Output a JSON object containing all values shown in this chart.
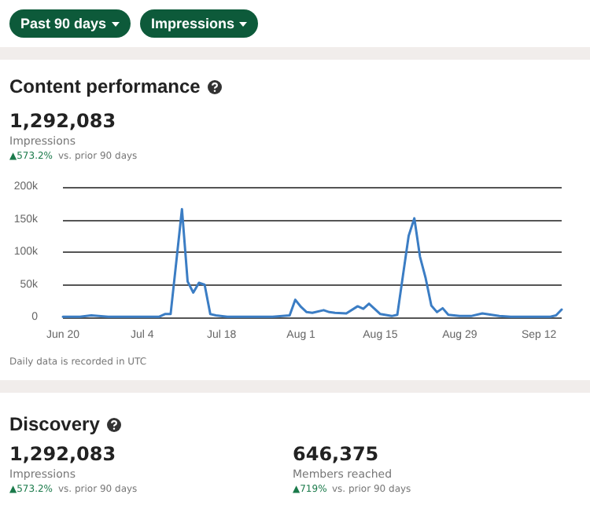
{
  "chart_data": [
    {
      "type": "line",
      "title": "Content performance",
      "annotations": [
        "Past 90 days",
        "Impressions",
        "1,292,083",
        "Impressions",
        "▲573.2%",
        "vs. prior 90 days",
        "Daily data is recorded in UTC"
      ],
      "x": [
        "--06-20",
        "--06-23",
        "--06-25",
        "--06-28",
        "--07-02",
        "--07-05",
        "--07-07",
        "--07-08",
        "--07-09",
        "--07-10",
        "--07-11",
        "--07-12",
        "--07-13",
        "--07-14",
        "--07-15",
        "--07-16",
        "--07-17",
        "--07-19",
        "--07-23",
        "--07-27",
        "--07-30",
        "--07-31",
        "--08-01",
        "--08-02",
        "--08-03",
        "--08-05",
        "--08-06",
        "--08-07",
        "--08-09",
        "--08-11",
        "--08-12",
        "--08-13",
        "--08-15",
        "--08-17",
        "--08-18",
        "--08-20",
        "--08-21",
        "--08-22",
        "--08-23",
        "--08-24",
        "--08-25",
        "--08-26",
        "--08-27",
        "--08-29",
        "--08-31",
        "--09-02",
        "--09-05",
        "--09-07",
        "--09-10",
        "--09-14",
        "--09-15",
        "--09-16"
      ],
      "series": [
        {
          "color": "#3b7dc4",
          "values": [
            1000,
            1000,
            3000,
            1000,
            1000,
            1000,
            1000,
            5000,
            5000,
            85000,
            166000,
            55000,
            38000,
            53000,
            50000,
            5000,
            3000,
            1000,
            1000,
            1000,
            3000,
            27000,
            16000,
            8000,
            7000,
            11000,
            8000,
            7000,
            6000,
            17000,
            13000,
            21000,
            5000,
            2000,
            4000,
            125000,
            152000,
            93000,
            60000,
            18000,
            8000,
            14000,
            4000,
            2000,
            2000,
            6000,
            2000,
            1000,
            1000,
            1000,
            3000,
            12000
          ]
        }
      ],
      "xlim": [
        "--06-20",
        "--09-16"
      ],
      "xticks": [
        {
          "value": "--06-20",
          "label": "Jun 20"
        },
        {
          "value": "--07-04",
          "label": "Jul 4"
        },
        {
          "value": "--07-18",
          "label": "Jul 18"
        },
        {
          "value": "--08-01",
          "label": "Aug 1"
        },
        {
          "value": "--08-15",
          "label": "Aug 15"
        },
        {
          "value": "--08-29",
          "label": "Aug 29"
        },
        {
          "value": "--09-12",
          "label": "Sep 12"
        }
      ],
      "ylim": [
        0,
        200000
      ],
      "yticks": [
        {
          "value": 0,
          "label": "0"
        },
        {
          "value": 50000,
          "label": "50k"
        },
        {
          "value": 100000,
          "label": "100k"
        },
        {
          "value": 150000,
          "label": "150k"
        },
        {
          "value": 200000,
          "label": "200k"
        }
      ],
      "grid": "y",
      "marker": "none",
      "line_style": "solid"
    },
    {
      "type": "other",
      "title": "Discovery",
      "annotations": [
        "1,292,083",
        "Impressions",
        "▲573.2%",
        "vs. prior 90 days",
        "646,375",
        "Members reached",
        "▲719%",
        "vs. prior 90 days"
      ]
    }
  ]
}
